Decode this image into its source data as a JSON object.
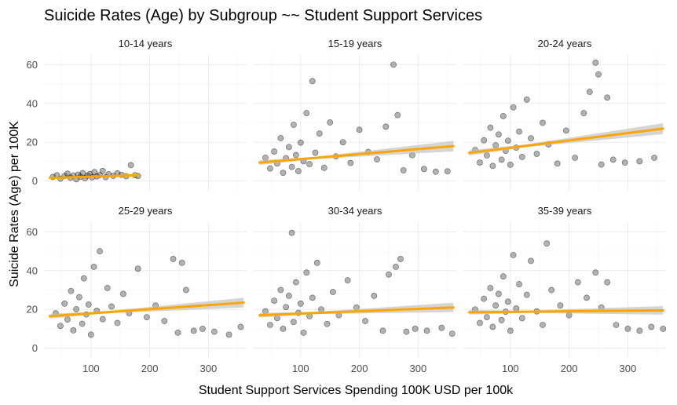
{
  "chart_data": {
    "type": "scatter",
    "title": "Suicide Rates (Age) by Subgroup ~~ Student Support Services",
    "xlabel": "Student Support Services Spending 100K USD per 100k",
    "ylabel": "Suicide Rates (Age) per 100K",
    "xlim": [
      20,
      365
    ],
    "ylim": [
      -5,
      65
    ],
    "x_ticks": [
      "100",
      "200",
      "300"
    ],
    "y_ticks": [
      "0",
      "20",
      "40",
      "60"
    ],
    "grid": true,
    "point_color": "#000000",
    "point_alpha": 0.3,
    "trend_color": "#ffa500",
    "ci_color": "#bebebe",
    "panels": [
      {
        "label": "10-14 years",
        "trend": {
          "x": [
            30,
            180
          ],
          "y": [
            1.6,
            3.0
          ]
        },
        "ci": {
          "x": [
            30,
            105,
            180
          ],
          "lower": [
            0.9,
            2.1,
            2.1
          ],
          "upper": [
            2.3,
            2.7,
            3.9
          ]
        },
        "points": [
          {
            "x": 35,
            "y": 2.1
          },
          {
            "x": 42,
            "y": 3.0
          },
          {
            "x": 48,
            "y": 1.2
          },
          {
            "x": 55,
            "y": 2.6
          },
          {
            "x": 60,
            "y": 3.8
          },
          {
            "x": 65,
            "y": 1.7
          },
          {
            "x": 70,
            "y": 2.9
          },
          {
            "x": 75,
            "y": 0.9
          },
          {
            "x": 78,
            "y": 3.3
          },
          {
            "x": 82,
            "y": 2.2
          },
          {
            "x": 86,
            "y": 4.1
          },
          {
            "x": 90,
            "y": 1.5
          },
          {
            "x": 94,
            "y": 2.8
          },
          {
            "x": 98,
            "y": 3.6
          },
          {
            "x": 102,
            "y": 1.9
          },
          {
            "x": 106,
            "y": 4.6
          },
          {
            "x": 110,
            "y": 2.4
          },
          {
            "x": 115,
            "y": 3.1
          },
          {
            "x": 120,
            "y": 5.2
          },
          {
            "x": 125,
            "y": 2.0
          },
          {
            "x": 130,
            "y": 3.5
          },
          {
            "x": 138,
            "y": 2.7
          },
          {
            "x": 145,
            "y": 4.0
          },
          {
            "x": 152,
            "y": 3.2
          },
          {
            "x": 160,
            "y": 2.5
          },
          {
            "x": 168,
            "y": 8.2
          },
          {
            "x": 175,
            "y": 3.0
          },
          {
            "x": 180,
            "y": 2.6
          }
        ]
      },
      {
        "label": "15-19 years",
        "trend": {
          "x": [
            30,
            360
          ],
          "y": [
            9.5,
            18.0
          ]
        },
        "ci": {
          "x": [
            30,
            125,
            360
          ],
          "lower": [
            8.3,
            11.3,
            15.3
          ],
          "upper": [
            10.7,
            12.5,
            20.7
          ]
        },
        "points": [
          {
            "x": 40,
            "y": 12.0
          },
          {
            "x": 48,
            "y": 6.5
          },
          {
            "x": 55,
            "y": 15.2
          },
          {
            "x": 60,
            "y": 9.0
          },
          {
            "x": 66,
            "y": 22.1
          },
          {
            "x": 70,
            "y": 4.2
          },
          {
            "x": 75,
            "y": 11.8
          },
          {
            "x": 80,
            "y": 17.5
          },
          {
            "x": 85,
            "y": 7.3
          },
          {
            "x": 88,
            "y": 29.0
          },
          {
            "x": 92,
            "y": 13.4
          },
          {
            "x": 96,
            "y": 5.1
          },
          {
            "x": 100,
            "y": 19.8
          },
          {
            "x": 105,
            "y": 10.2
          },
          {
            "x": 110,
            "y": 35.0
          },
          {
            "x": 115,
            "y": 8.7
          },
          {
            "x": 120,
            "y": 51.5
          },
          {
            "x": 125,
            "y": 14.6
          },
          {
            "x": 132,
            "y": 24.5
          },
          {
            "x": 140,
            "y": 6.8
          },
          {
            "x": 150,
            "y": 30.2
          },
          {
            "x": 160,
            "y": 12.7
          },
          {
            "x": 172,
            "y": 20.0
          },
          {
            "x": 185,
            "y": 9.3
          },
          {
            "x": 200,
            "y": 26.4
          },
          {
            "x": 215,
            "y": 15.0
          },
          {
            "x": 230,
            "y": 11.2
          },
          {
            "x": 245,
            "y": 28.0
          },
          {
            "x": 258,
            "y": 60.0
          },
          {
            "x": 265,
            "y": 34.0
          },
          {
            "x": 275,
            "y": 5.5
          },
          {
            "x": 290,
            "y": 13.3
          },
          {
            "x": 310,
            "y": 6.2
          },
          {
            "x": 330,
            "y": 4.8
          },
          {
            "x": 350,
            "y": 5.0
          }
        ]
      },
      {
        "label": "20-24 years",
        "trend": {
          "x": [
            30,
            360
          ],
          "y": [
            14.5,
            27.0
          ]
        },
        "ci": {
          "x": [
            30,
            125,
            360
          ],
          "lower": [
            13.1,
            17.4,
            24.2
          ],
          "upper": [
            15.9,
            18.8,
            29.8
          ]
        },
        "points": [
          {
            "x": 40,
            "y": 16.0
          },
          {
            "x": 48,
            "y": 9.5
          },
          {
            "x": 55,
            "y": 21.0
          },
          {
            "x": 60,
            "y": 13.2
          },
          {
            "x": 66,
            "y": 27.5
          },
          {
            "x": 70,
            "y": 7.8
          },
          {
            "x": 75,
            "y": 18.4
          },
          {
            "x": 80,
            "y": 24.0
          },
          {
            "x": 85,
            "y": 11.0
          },
          {
            "x": 88,
            "y": 33.5
          },
          {
            "x": 92,
            "y": 15.6
          },
          {
            "x": 96,
            "y": 20.8
          },
          {
            "x": 100,
            "y": 8.4
          },
          {
            "x": 105,
            "y": 38.0
          },
          {
            "x": 110,
            "y": 17.2
          },
          {
            "x": 115,
            "y": 25.5
          },
          {
            "x": 120,
            "y": 12.4
          },
          {
            "x": 128,
            "y": 42.0
          },
          {
            "x": 135,
            "y": 22.0
          },
          {
            "x": 145,
            "y": 14.0
          },
          {
            "x": 155,
            "y": 30.0
          },
          {
            "x": 165,
            "y": 18.9
          },
          {
            "x": 180,
            "y": 9.0
          },
          {
            "x": 195,
            "y": 26.0
          },
          {
            "x": 210,
            "y": 12.0
          },
          {
            "x": 225,
            "y": 35.0
          },
          {
            "x": 235,
            "y": 46.0
          },
          {
            "x": 245,
            "y": 61.0
          },
          {
            "x": 250,
            "y": 55.0
          },
          {
            "x": 255,
            "y": 8.5
          },
          {
            "x": 265,
            "y": 43.0
          },
          {
            "x": 275,
            "y": 11.0
          },
          {
            "x": 295,
            "y": 9.5
          },
          {
            "x": 320,
            "y": 10.2
          },
          {
            "x": 345,
            "y": 12.0
          }
        ]
      },
      {
        "label": "25-29 years",
        "trend": {
          "x": [
            30,
            360
          ],
          "y": [
            16.5,
            23.5
          ]
        },
        "ci": {
          "x": [
            30,
            125,
            360
          ],
          "lower": [
            15.3,
            17.9,
            21.0
          ],
          "upper": [
            17.7,
            19.1,
            26.0
          ]
        },
        "points": [
          {
            "x": 40,
            "y": 18.0
          },
          {
            "x": 48,
            "y": 11.5
          },
          {
            "x": 55,
            "y": 23.0
          },
          {
            "x": 60,
            "y": 14.8
          },
          {
            "x": 66,
            "y": 29.5
          },
          {
            "x": 70,
            "y": 9.2
          },
          {
            "x": 75,
            "y": 20.1
          },
          {
            "x": 80,
            "y": 26.3
          },
          {
            "x": 85,
            "y": 12.6
          },
          {
            "x": 88,
            "y": 36.0
          },
          {
            "x": 92,
            "y": 17.4
          },
          {
            "x": 96,
            "y": 22.5
          },
          {
            "x": 100,
            "y": 7.0
          },
          {
            "x": 105,
            "y": 42.0
          },
          {
            "x": 110,
            "y": 19.3
          },
          {
            "x": 115,
            "y": 50.0
          },
          {
            "x": 120,
            "y": 15.0
          },
          {
            "x": 128,
            "y": 31.0
          },
          {
            "x": 135,
            "y": 21.5
          },
          {
            "x": 145,
            "y": 13.0
          },
          {
            "x": 155,
            "y": 28.0
          },
          {
            "x": 165,
            "y": 18.0
          },
          {
            "x": 180,
            "y": 41.0
          },
          {
            "x": 195,
            "y": 16.0
          },
          {
            "x": 210,
            "y": 22.0
          },
          {
            "x": 225,
            "y": 14.0
          },
          {
            "x": 240,
            "y": 46.0
          },
          {
            "x": 248,
            "y": 8.0
          },
          {
            "x": 255,
            "y": 44.0
          },
          {
            "x": 262,
            "y": 30.0
          },
          {
            "x": 275,
            "y": 9.0
          },
          {
            "x": 290,
            "y": 10.0
          },
          {
            "x": 310,
            "y": 8.5
          },
          {
            "x": 335,
            "y": 7.0
          },
          {
            "x": 355,
            "y": 11.0
          }
        ]
      },
      {
        "label": "30-34 years",
        "trend": {
          "x": [
            30,
            360
          ],
          "y": [
            17.0,
            21.0
          ]
        },
        "ci": {
          "x": [
            30,
            125,
            360
          ],
          "lower": [
            15.8,
            17.6,
            18.6
          ],
          "upper": [
            18.2,
            18.8,
            23.4
          ]
        },
        "points": [
          {
            "x": 40,
            "y": 19.0
          },
          {
            "x": 48,
            "y": 12.0
          },
          {
            "x": 55,
            "y": 24.5
          },
          {
            "x": 60,
            "y": 15.5
          },
          {
            "x": 66,
            "y": 30.0
          },
          {
            "x": 70,
            "y": 10.0
          },
          {
            "x": 75,
            "y": 21.2
          },
          {
            "x": 80,
            "y": 27.0
          },
          {
            "x": 85,
            "y": 59.5
          },
          {
            "x": 88,
            "y": 13.5
          },
          {
            "x": 92,
            "y": 34.0
          },
          {
            "x": 96,
            "y": 18.2
          },
          {
            "x": 100,
            "y": 23.0
          },
          {
            "x": 105,
            "y": 8.0
          },
          {
            "x": 110,
            "y": 39.0
          },
          {
            "x": 115,
            "y": 16.5
          },
          {
            "x": 120,
            "y": 26.0
          },
          {
            "x": 128,
            "y": 44.0
          },
          {
            "x": 135,
            "y": 20.0
          },
          {
            "x": 145,
            "y": 12.5
          },
          {
            "x": 155,
            "y": 29.0
          },
          {
            "x": 165,
            "y": 17.0
          },
          {
            "x": 180,
            "y": 35.0
          },
          {
            "x": 195,
            "y": 21.0
          },
          {
            "x": 210,
            "y": 14.0
          },
          {
            "x": 225,
            "y": 27.0
          },
          {
            "x": 240,
            "y": 9.0
          },
          {
            "x": 250,
            "y": 38.0
          },
          {
            "x": 262,
            "y": 42.0
          },
          {
            "x": 270,
            "y": 46.0
          },
          {
            "x": 280,
            "y": 8.5
          },
          {
            "x": 295,
            "y": 10.0
          },
          {
            "x": 315,
            "y": 9.0
          },
          {
            "x": 340,
            "y": 10.5
          },
          {
            "x": 358,
            "y": 7.5
          }
        ]
      },
      {
        "label": "35-39 years",
        "trend": {
          "x": [
            30,
            360
          ],
          "y": [
            18.5,
            19.5
          ]
        },
        "ci": {
          "x": [
            30,
            125,
            360
          ],
          "lower": [
            17.3,
            18.2,
            17.3
          ],
          "upper": [
            19.7,
            19.4,
            21.7
          ]
        },
        "points": [
          {
            "x": 40,
            "y": 20.0
          },
          {
            "x": 48,
            "y": 13.0
          },
          {
            "x": 55,
            "y": 25.5
          },
          {
            "x": 60,
            "y": 16.0
          },
          {
            "x": 66,
            "y": 31.0
          },
          {
            "x": 70,
            "y": 11.0
          },
          {
            "x": 75,
            "y": 22.0
          },
          {
            "x": 80,
            "y": 28.0
          },
          {
            "x": 85,
            "y": 14.5
          },
          {
            "x": 88,
            "y": 37.0
          },
          {
            "x": 92,
            "y": 18.8
          },
          {
            "x": 96,
            "y": 24.0
          },
          {
            "x": 100,
            "y": 9.0
          },
          {
            "x": 105,
            "y": 48.0
          },
          {
            "x": 110,
            "y": 20.5
          },
          {
            "x": 115,
            "y": 33.0
          },
          {
            "x": 120,
            "y": 15.5
          },
          {
            "x": 128,
            "y": 27.5
          },
          {
            "x": 135,
            "y": 45.0
          },
          {
            "x": 145,
            "y": 19.0
          },
          {
            "x": 155,
            "y": 12.0
          },
          {
            "x": 162,
            "y": 54.0
          },
          {
            "x": 170,
            "y": 30.0
          },
          {
            "x": 185,
            "y": 22.0
          },
          {
            "x": 200,
            "y": 17.0
          },
          {
            "x": 215,
            "y": 34.0
          },
          {
            "x": 230,
            "y": 26.0
          },
          {
            "x": 245,
            "y": 39.0
          },
          {
            "x": 255,
            "y": 21.0
          },
          {
            "x": 265,
            "y": 34.0
          },
          {
            "x": 280,
            "y": 12.0
          },
          {
            "x": 300,
            "y": 10.0
          },
          {
            "x": 320,
            "y": 9.0
          },
          {
            "x": 340,
            "y": 11.0
          },
          {
            "x": 360,
            "y": 10.0
          }
        ]
      }
    ]
  }
}
